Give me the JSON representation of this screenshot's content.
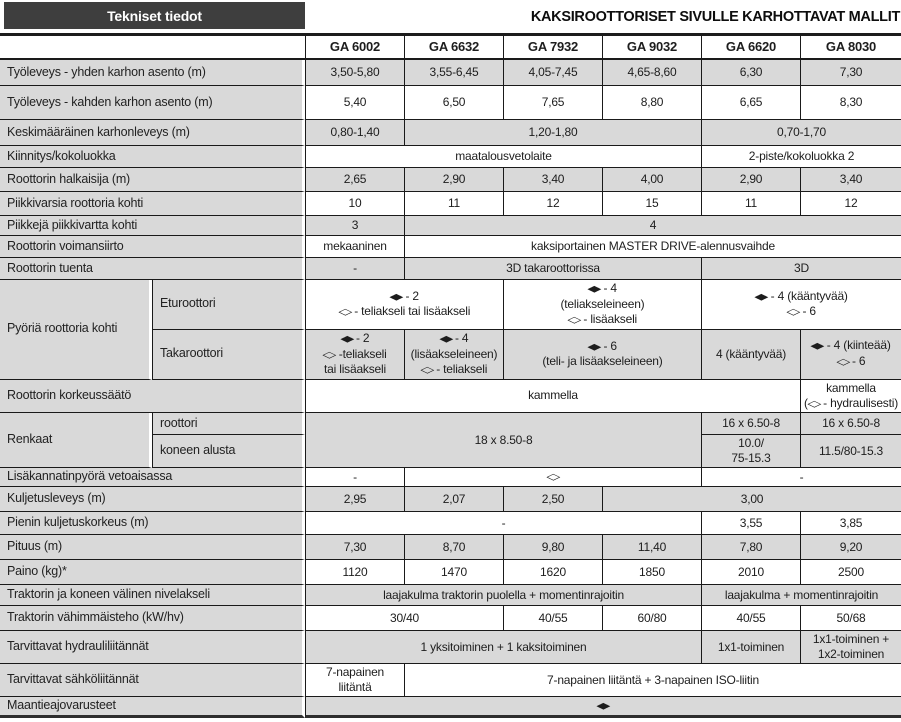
{
  "header": {
    "left_title": "Tekniset tiedot",
    "right_title": "KAKSIROOTTORISET SIVULLE KARHOTTAVAT MALLIT"
  },
  "colors": {
    "header_box_bg": "#3e3e3e",
    "row_gray": "#d9d9d9",
    "border": "#1a1a1a"
  },
  "icons": {
    "filled_diamond": "◆",
    "outline_diamond": "◇"
  },
  "columns": [
    "GA 6002",
    "GA 6632",
    "GA 7932",
    "GA 9032",
    "GA 6620",
    "GA 8030"
  ],
  "rows": [
    {
      "id": "tyoleveys-yhden",
      "label": "Työleveys - yhden karhon asento (m)",
      "shade": "g",
      "cells": [
        {
          "t": "3,50-5,80"
        },
        {
          "t": "3,55-6,45"
        },
        {
          "t": "4,05-7,45"
        },
        {
          "t": "4,65-8,60"
        },
        {
          "t": "6,30"
        },
        {
          "t": "7,30"
        }
      ]
    },
    {
      "id": "tyoleveys-kahden",
      "label": "Työleveys - kahden karhon asento (m)",
      "shade": "w",
      "cells": [
        {
          "t": "5,40"
        },
        {
          "t": "6,50"
        },
        {
          "t": "7,65"
        },
        {
          "t": "8,80"
        },
        {
          "t": "6,65"
        },
        {
          "t": "8,30"
        }
      ]
    },
    {
      "id": "keskimaarainen-karhonleveys",
      "label": "Keskimääräinen karhonleveys (m)",
      "shade": "g",
      "cells": [
        {
          "t": "0,80-1,40"
        },
        {
          "t": "1,20-1,80",
          "s": 3
        },
        {
          "t": "0,70-1,70",
          "s": 2
        }
      ]
    },
    {
      "id": "kiinnitys",
      "label": "Kiinnitys/kokoluokka",
      "shade": "w",
      "cells": [
        {
          "t": "maatalousvetolaite",
          "s": 4
        },
        {
          "t": "2-piste/kokoluokka 2",
          "s": 2
        }
      ]
    },
    {
      "id": "roottorin-halkaisija",
      "label": "Roottorin halkaisija (m)",
      "shade": "g",
      "cells": [
        {
          "t": "2,65"
        },
        {
          "t": "2,90"
        },
        {
          "t": "3,40"
        },
        {
          "t": "4,00"
        },
        {
          "t": "2,90"
        },
        {
          "t": "3,40"
        }
      ]
    },
    {
      "id": "piikkivarsia",
      "label": "Piikkivarsia roottoria kohti",
      "shade": "w",
      "cells": [
        {
          "t": "10"
        },
        {
          "t": "11"
        },
        {
          "t": "12"
        },
        {
          "t": "15"
        },
        {
          "t": "11"
        },
        {
          "t": "12"
        }
      ]
    },
    {
      "id": "piikkeja",
      "label": "Piikkejä piikkivartta kohti",
      "shade": "g",
      "cells": [
        {
          "t": "3"
        },
        {
          "t": "4",
          "s": 5
        }
      ]
    },
    {
      "id": "voimansiirto",
      "label": "Roottorin voimansiirto",
      "shade": "w",
      "cells": [
        {
          "t": "mekaaninen"
        },
        {
          "t": "kaksiportainen MASTER DRIVE-alennusvaihde",
          "s": 5
        }
      ]
    },
    {
      "id": "tuenta",
      "label": "Roottorin tuenta",
      "shade": "g",
      "cells": [
        {
          "t": "-"
        },
        {
          "t": "3D takaroottorissa",
          "s": 3
        },
        {
          "t": "3D",
          "s": 2
        }
      ]
    },
    {
      "id": "pyoria-eturoottori",
      "label": "Pyöriä roottoria kohti",
      "label_rowspan": 2,
      "sublabel": "Eturoottori",
      "shade": "w",
      "cells": [
        {
          "l": [
            "◆ - 2",
            "◇ - teliakseli tai lisäakseli"
          ],
          "s": 2
        },
        {
          "l": [
            "◆ - 4",
            "(teliakseleineen)",
            "◇ - lisäakseli"
          ],
          "s": 2
        },
        {
          "l": [
            "◆ - 4 (kääntyvää)",
            "◇ - 6"
          ],
          "s": 2
        }
      ]
    },
    {
      "id": "pyoria-takaroottori",
      "sublabel": "Takaroottori",
      "shade": "g",
      "cells": [
        {
          "l": [
            "◆ - 2",
            "◇ -teliakseli",
            "tai lisäakseli"
          ]
        },
        {
          "l": [
            "◆ - 4",
            "(lisäakseleineen)",
            "◇ - teliakseli"
          ]
        },
        {
          "l": [
            "◆ - 6",
            "(teli- ja lisäakseleineen)"
          ],
          "s": 2
        },
        {
          "t": "4 (kääntyvää)"
        },
        {
          "l": [
            "◆ - 4 (kiinteää)",
            "◇ - 6"
          ]
        }
      ]
    },
    {
      "id": "korkeussaato",
      "label": "Roottorin korkeussäätö",
      "shade": "w",
      "cells": [
        {
          "t": "kammella",
          "s": 5
        },
        {
          "l": [
            "kammella",
            "(◇ - hydraulisesti)"
          ]
        }
      ]
    },
    {
      "id": "renkaat-roottori",
      "label": "Renkaat",
      "label_rowspan": 2,
      "sublabel": "roottori",
      "shade": "g",
      "cells": [
        {
          "t": "18 x 8.50-8",
          "s": 4,
          "r": 2
        },
        {
          "t": "16 x 6.50-8"
        },
        {
          "t": "16 x 6.50-8"
        }
      ]
    },
    {
      "id": "renkaat-koneen-alusta",
      "sublabel": "koneen alusta",
      "shade": "g",
      "cells": [
        {
          "l": [
            "10.0/",
            "75-15.3"
          ]
        },
        {
          "t": "11.5/80-15.3"
        }
      ]
    },
    {
      "id": "lisakannatinpyora",
      "label": "Lisäkannatinpyörä vetoaisassa",
      "shade": "w",
      "cells": [
        {
          "t": "-"
        },
        {
          "t": "◇",
          "s": 3
        },
        {
          "t": "-",
          "s": 2
        }
      ]
    },
    {
      "id": "kuljetusleveys",
      "label": "Kuljetusleveys (m)",
      "shade": "g",
      "cells": [
        {
          "t": "2,95"
        },
        {
          "t": "2,07"
        },
        {
          "t": "2,50"
        },
        {
          "t": "3,00",
          "s": 3
        }
      ]
    },
    {
      "id": "pienin-kuljetuskorkeus",
      "label": "Pienin kuljetuskorkeus (m)",
      "shade": "w",
      "cells": [
        {
          "t": "-",
          "s": 4
        },
        {
          "t": "3,55"
        },
        {
          "t": "3,85"
        }
      ]
    },
    {
      "id": "pituus",
      "label": "Pituus (m)",
      "shade": "g",
      "cells": [
        {
          "t": "7,30"
        },
        {
          "t": "8,70"
        },
        {
          "t": "9,80"
        },
        {
          "t": "11,40"
        },
        {
          "t": "7,80"
        },
        {
          "t": "9,20"
        }
      ]
    },
    {
      "id": "paino",
      "label": "Paino (kg)*",
      "shade": "w",
      "cells": [
        {
          "t": "1120"
        },
        {
          "t": "1470"
        },
        {
          "t": "1620"
        },
        {
          "t": "1850"
        },
        {
          "t": "2010"
        },
        {
          "t": "2500"
        }
      ]
    },
    {
      "id": "nivelakseli",
      "label": "Traktorin ja koneen välinen nivelakseli",
      "shade": "g",
      "cells": [
        {
          "t": "laajakulma traktorin puolella + momentinrajoitin",
          "s": 4
        },
        {
          "t": "laajakulma + momentinrajoitin",
          "s": 2
        }
      ]
    },
    {
      "id": "vahimmaisteho",
      "label": "Traktorin vähimmäisteho (kW/hv)",
      "shade": "w",
      "cells": [
        {
          "t": "30/40",
          "s": 2
        },
        {
          "t": "40/55"
        },
        {
          "t": "60/80"
        },
        {
          "t": "40/55"
        },
        {
          "t": "50/68"
        }
      ]
    },
    {
      "id": "hydrauliliitannat",
      "label": "Tarvittavat hydrauliliitännät",
      "shade": "g",
      "cells": [
        {
          "t": "1 yksitoiminen + 1 kaksitoiminen",
          "s": 4
        },
        {
          "t": "1x1-toiminen"
        },
        {
          "l": [
            "1x1-toiminen +",
            "1x2-toiminen"
          ]
        }
      ]
    },
    {
      "id": "sahkoliitannat",
      "label": "Tarvittavat sähköliitännät",
      "shade": "w",
      "cells": [
        {
          "t": "7-napainen liitäntä"
        },
        {
          "t": "7-napainen liitäntä + 3-napainen ISO-liitin",
          "s": 5
        }
      ]
    },
    {
      "id": "maantieajovarusteet",
      "label": "Maantieajovarusteet",
      "shade": "g",
      "cells": [
        {
          "t": "◆",
          "s": 6
        }
      ]
    }
  ]
}
